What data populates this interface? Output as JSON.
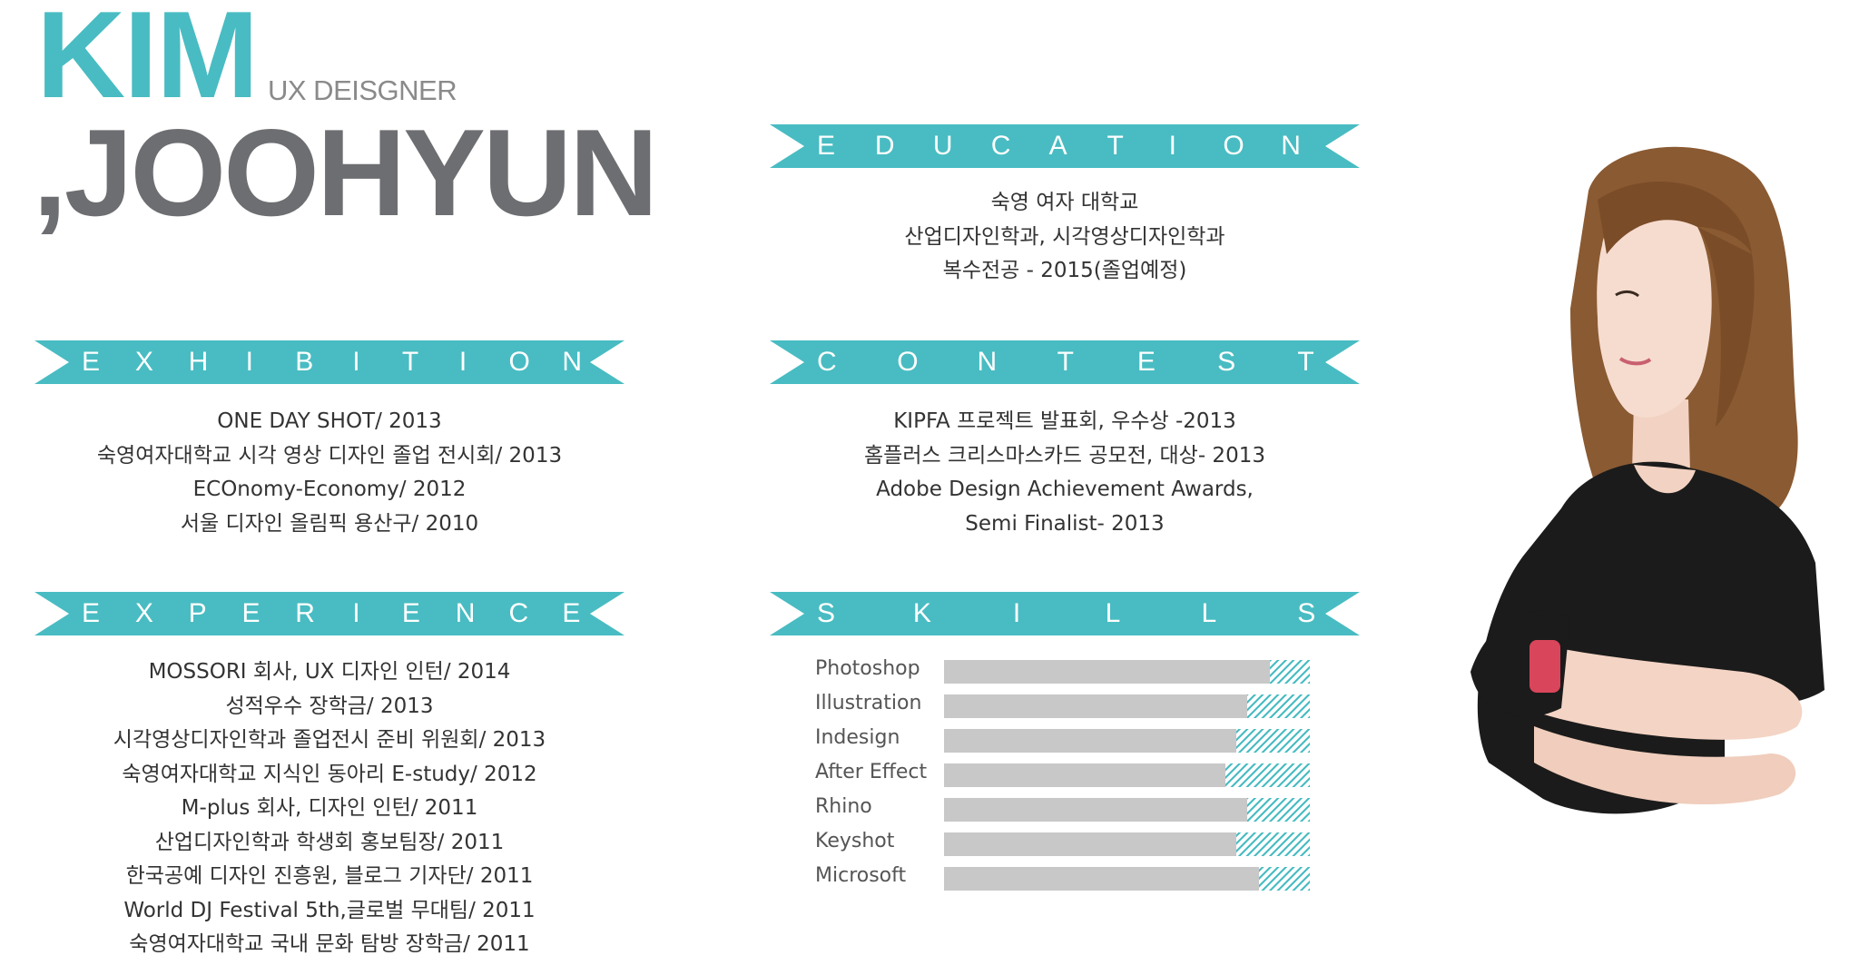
{
  "header": {
    "first_name": "KIM",
    "last_name": ",JOOHYUN",
    "role": "UX DEISGNER"
  },
  "colors": {
    "accent": "#48bcc2",
    "name_dark": "#6d6e71",
    "bar_gray": "#c8c8c8"
  },
  "education": {
    "title": "EDUCATION",
    "lines": [
      "숙영 여자 대학교",
      "산업디자인학과, 시각영상디자인학과",
      "복수전공 - 2015(졸업예정)"
    ]
  },
  "exhibition": {
    "title": "EXHIBITION",
    "lines": [
      "ONE DAY SHOT/ 2013",
      "숙영여자대학교 시각 영상 디자인 졸업 전시회/ 2013",
      "ECOnomy-Economy/ 2012",
      "서울 디자인 올림픽 용산구/ 2010"
    ]
  },
  "contest": {
    "title": "CONTEST",
    "lines": [
      "KIPFA 프로젝트 발표회, 우수상 -2013",
      "홈플러스 크리스마스카드 공모전, 대상- 2013",
      "Adobe Design Achievement Awards,",
      "Semi Finalist- 2013"
    ]
  },
  "experience": {
    "title": "EXPERIENCE",
    "lines": [
      "MOSSORI 회사, UX 디자인 인턴/ 2014",
      "성적우수 장학금/ 2013",
      "시각영상디자인학과 졸업전시 준비 위원회/ 2013",
      "숙영여자대학교 지식인 동아리 E-study/ 2012",
      "M-plus 회사, 디자인 인턴/ 2011",
      "산업디자인학과 학생회 홍보팀장/ 2011",
      "한국공예 디자인 진흥원, 블로그 기자단/ 2011",
      "World DJ Festival 5th,글로벌 무대팀/ 2011",
      "숙영여자대학교 국내 문화 탐방 장학금/ 2011"
    ]
  },
  "skills": {
    "title": "SKILLS",
    "items": [
      {
        "label": "Photoshop",
        "level": 0.89
      },
      {
        "label": "Illustration",
        "level": 0.83
      },
      {
        "label": "Indesign",
        "level": 0.8
      },
      {
        "label": "After Effect",
        "level": 0.77
      },
      {
        "label": "Rhino",
        "level": 0.83
      },
      {
        "label": "Keyshot",
        "level": 0.8
      },
      {
        "label": "Microsoft",
        "level": 0.86
      }
    ]
  }
}
